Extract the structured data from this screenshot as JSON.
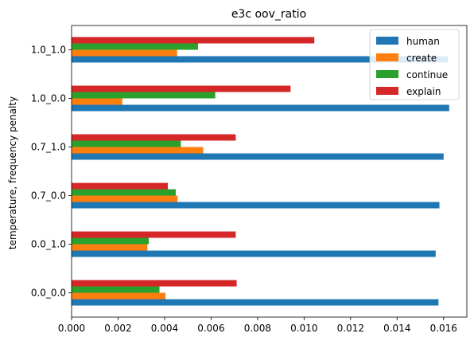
{
  "chart_data": {
    "type": "bar",
    "orientation": "horizontal",
    "title": "e3c oov_ratio",
    "xlabel": "",
    "ylabel": "temperature, frequency penalty",
    "xlim": [
      0,
      0.017
    ],
    "xticks": [
      "0.000",
      "0.002",
      "0.004",
      "0.006",
      "0.008",
      "0.010",
      "0.012",
      "0.014",
      "0.016"
    ],
    "categories": [
      "0.0_0.0",
      "0.0_1.0",
      "0.7_0.0",
      "0.7_1.0",
      "1.0_0.0",
      "1.0_1.0"
    ],
    "series": [
      {
        "name": "human",
        "color": "#1f77b4",
        "values": [
          0.01578,
          0.01566,
          0.01582,
          0.016,
          0.01624,
          0.01618
        ]
      },
      {
        "name": "create",
        "color": "#ff7f0e",
        "values": [
          0.00404,
          0.00326,
          0.00456,
          0.00566,
          0.00218,
          0.00454
        ]
      },
      {
        "name": "continue",
        "color": "#2ca02c",
        "values": [
          0.00378,
          0.00332,
          0.00448,
          0.0047,
          0.00618,
          0.00544
        ]
      },
      {
        "name": "explain",
        "color": "#d62728",
        "values": [
          0.0071,
          0.00706,
          0.00414,
          0.00706,
          0.00942,
          0.01044
        ]
      }
    ],
    "grid": false,
    "legend": "top-right"
  }
}
